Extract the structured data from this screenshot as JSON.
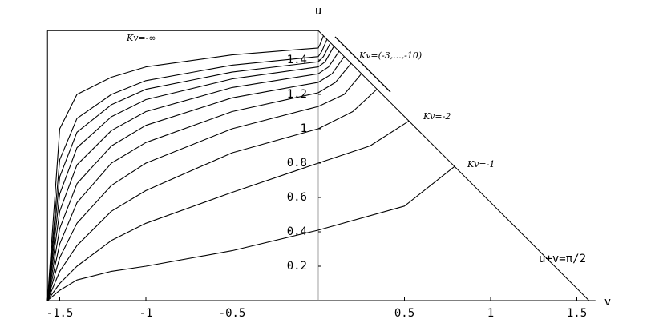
{
  "chart_data": {
    "type": "line",
    "xlabel": "v",
    "ylabel": "u",
    "xlim": [
      -1.571,
      1.571
    ],
    "ylim": [
      0,
      1.571
    ],
    "xticks": [
      -1.5,
      -1,
      -0.5,
      0.5,
      1,
      1.5
    ],
    "yticks": [
      0.2,
      0.4,
      0.6,
      0.8,
      1,
      1.2,
      1.4
    ],
    "color": "#000000",
    "annotations": [
      "Kv=-∞",
      "Kv=(-3,...,-10)",
      "Kv=-2",
      "Kv=-1",
      "u+v=π/2"
    ],
    "series": [
      {
        "x": [
          -1.571,
          -1.5,
          -1.4,
          -1.2,
          -1,
          -0.5,
          0,
          0.5,
          0.79
        ],
        "values": [
          0,
          0.06,
          0.12,
          0.17,
          0.2,
          0.29,
          0.41,
          0.55,
          0.78
        ]
      },
      {
        "x": [
          -1.571,
          -1.5,
          -1.4,
          -1.2,
          -1,
          -0.5,
          0,
          0.3,
          0.526
        ],
        "values": [
          0,
          0.1,
          0.2,
          0.35,
          0.45,
          0.63,
          0.8,
          0.9,
          1.045
        ]
      },
      {
        "x": [
          -1.571,
          -1.5,
          -1.4,
          -1.2,
          -1,
          -0.5,
          0,
          0.2,
          0.34
        ],
        "values": [
          0,
          0.17,
          0.32,
          0.52,
          0.64,
          0.86,
          1.0,
          1.1,
          1.23
        ]
      },
      {
        "x": [
          -1.571,
          -1.5,
          -1.4,
          -1.2,
          -1,
          -0.5,
          0,
          0.15,
          0.25
        ],
        "values": [
          0,
          0.25,
          0.45,
          0.67,
          0.8,
          1.0,
          1.13,
          1.2,
          1.32
        ]
      },
      {
        "x": [
          -1.571,
          -1.5,
          -1.4,
          -1.2,
          -1,
          -0.5,
          0,
          0.1,
          0.19
        ],
        "values": [
          0,
          0.33,
          0.57,
          0.8,
          0.92,
          1.1,
          1.21,
          1.27,
          1.38
        ]
      },
      {
        "x": [
          -1.571,
          -1.5,
          -1.4,
          -1.2,
          -1,
          -0.5,
          0,
          0.08,
          0.15
        ],
        "values": [
          0,
          0.42,
          0.68,
          0.9,
          1.02,
          1.18,
          1.27,
          1.32,
          1.42
        ]
      },
      {
        "x": [
          -1.571,
          -1.5,
          -1.4,
          -1.2,
          -1,
          -0.5,
          0,
          0.06,
          0.12
        ],
        "values": [
          0,
          0.52,
          0.79,
          0.99,
          1.1,
          1.24,
          1.32,
          1.36,
          1.45
        ]
      },
      {
        "x": [
          -1.571,
          -1.5,
          -1.4,
          -1.2,
          -1,
          -0.5,
          0,
          0.04,
          0.09
        ],
        "values": [
          0,
          0.62,
          0.89,
          1.07,
          1.17,
          1.29,
          1.36,
          1.39,
          1.48
        ]
      },
      {
        "x": [
          -1.571,
          -1.5,
          -1.4,
          -1.2,
          -1,
          -0.5,
          0,
          0.03,
          0.07
        ],
        "values": [
          0,
          0.72,
          0.98,
          1.14,
          1.23,
          1.33,
          1.39,
          1.42,
          1.5
        ]
      },
      {
        "x": [
          -1.571,
          -1.5,
          -1.4,
          -1.2,
          -1,
          -0.5,
          0,
          0.02,
          0.05
        ],
        "values": [
          0,
          0.82,
          1.06,
          1.2,
          1.28,
          1.37,
          1.42,
          1.45,
          1.52
        ]
      },
      {
        "x": [
          -1.571,
          -1.5,
          -1.4,
          -1.2,
          -1,
          -0.5,
          0,
          0.01,
          0.03
        ],
        "values": [
          0,
          1.0,
          1.2,
          1.3,
          1.36,
          1.43,
          1.47,
          1.49,
          1.54
        ]
      }
    ]
  }
}
